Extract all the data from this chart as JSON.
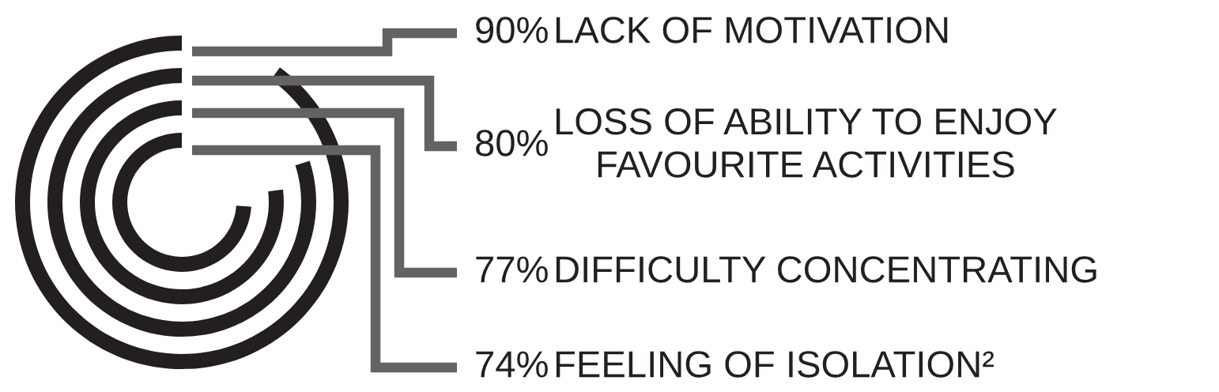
{
  "chart_data": {
    "type": "other",
    "categories": [
      "LACK OF MOTIVATION",
      "LOSS OF ABILITY TO ENJOY\nFAVOURITE ACTIVITIES",
      "DIFFICULTY CONCENTRATING",
      "FEELING OF ISOLATION²"
    ],
    "values": [
      90,
      80,
      77,
      74
    ],
    "value_labels": [
      "90%",
      "80%",
      "77%",
      "74%"
    ],
    "colors": [
      "#231f20",
      "#231f20",
      "#231f20",
      "#231f20"
    ]
  }
}
